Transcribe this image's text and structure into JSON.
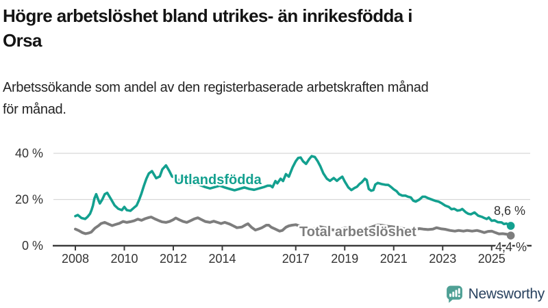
{
  "title": {
    "line1": "Högre arbetslöshet bland utrikes- än inrikesfödda i",
    "line2": "Orsa"
  },
  "subtitle": {
    "line1": "Arbetssökande som andel av den registerbaserade arbetskraften månad",
    "line2": "för månad."
  },
  "chart_data": {
    "type": "line",
    "unit": "%",
    "grid": "horizontal",
    "legend_position": "inline-labels",
    "ylim": [
      0,
      40
    ],
    "xlim": [
      2008,
      2025.9
    ],
    "y_ticks": [
      {
        "value": 0,
        "label": "0 %"
      },
      {
        "value": 20,
        "label": "20 %"
      },
      {
        "value": 40,
        "label": "40 %"
      }
    ],
    "x_ticks": [
      {
        "value": 2008,
        "label": "2008"
      },
      {
        "value": 2010,
        "label": "2010"
      },
      {
        "value": 2012,
        "label": "2012"
      },
      {
        "value": 2014,
        "label": "2014"
      },
      {
        "value": 2017,
        "label": "2017"
      },
      {
        "value": 2019,
        "label": "2019"
      },
      {
        "value": 2021,
        "label": "2021"
      },
      {
        "value": 2023,
        "label": "2023"
      },
      {
        "value": 2025,
        "label": "2025"
      }
    ],
    "series": [
      {
        "name": "Utlandsfödda",
        "color": "#13a08f",
        "end_label": "8,6 %",
        "end_value": 8.6,
        "points": [
          [
            2008.0,
            12.8
          ],
          [
            2008.1,
            13.3
          ],
          [
            2008.25,
            12.0
          ],
          [
            2008.4,
            11.6
          ],
          [
            2008.5,
            12.5
          ],
          [
            2008.6,
            13.8
          ],
          [
            2008.66,
            15.4
          ],
          [
            2008.72,
            17.4
          ],
          [
            2008.78,
            20.5
          ],
          [
            2008.85,
            22.3
          ],
          [
            2008.95,
            19.5
          ],
          [
            2009.0,
            18.3
          ],
          [
            2009.1,
            20.0
          ],
          [
            2009.2,
            22.3
          ],
          [
            2009.3,
            22.9
          ],
          [
            2009.45,
            20.3
          ],
          [
            2009.6,
            17.5
          ],
          [
            2009.75,
            16.0
          ],
          [
            2009.9,
            15.4
          ],
          [
            2010.0,
            16.8
          ],
          [
            2010.1,
            15.4
          ],
          [
            2010.25,
            15.1
          ],
          [
            2010.4,
            16.5
          ],
          [
            2010.5,
            17.4
          ],
          [
            2010.6,
            19.7
          ],
          [
            2010.7,
            22.6
          ],
          [
            2010.8,
            26.0
          ],
          [
            2010.9,
            29.0
          ],
          [
            2011.0,
            31.3
          ],
          [
            2011.13,
            32.3
          ],
          [
            2011.3,
            29.2
          ],
          [
            2011.45,
            30.0
          ],
          [
            2011.55,
            33.0
          ],
          [
            2011.7,
            34.8
          ],
          [
            2011.83,
            32.5
          ],
          [
            2011.95,
            30.0
          ],
          [
            2012.1,
            29.3
          ],
          [
            2012.3,
            28.0
          ],
          [
            2012.5,
            27.0
          ],
          [
            2012.7,
            26.3
          ],
          [
            2012.9,
            27.0
          ],
          [
            2013.1,
            26.2
          ],
          [
            2013.3,
            25.4
          ],
          [
            2013.5,
            24.8
          ],
          [
            2013.7,
            25.4
          ],
          [
            2013.9,
            26.0
          ],
          [
            2014.1,
            25.2
          ],
          [
            2014.3,
            24.6
          ],
          [
            2014.5,
            24.0
          ],
          [
            2014.7,
            24.6
          ],
          [
            2014.9,
            25.2
          ],
          [
            2015.1,
            24.6
          ],
          [
            2015.3,
            24.2
          ],
          [
            2015.5,
            24.8
          ],
          [
            2015.7,
            25.4
          ],
          [
            2015.85,
            26.0
          ],
          [
            2015.97,
            26.0
          ],
          [
            2016.05,
            25.3
          ],
          [
            2016.17,
            28.0
          ],
          [
            2016.25,
            27.0
          ],
          [
            2016.38,
            29.0
          ],
          [
            2016.48,
            28.0
          ],
          [
            2016.6,
            31.0
          ],
          [
            2016.72,
            29.9
          ],
          [
            2016.87,
            33.9
          ],
          [
            2017.0,
            36.6
          ],
          [
            2017.1,
            38.0
          ],
          [
            2017.2,
            38.2
          ],
          [
            2017.3,
            36.5
          ],
          [
            2017.42,
            35.4
          ],
          [
            2017.55,
            37.5
          ],
          [
            2017.65,
            38.8
          ],
          [
            2017.78,
            38.4
          ],
          [
            2017.9,
            36.5
          ],
          [
            2018.0,
            34.5
          ],
          [
            2018.13,
            31.3
          ],
          [
            2018.27,
            29.0
          ],
          [
            2018.4,
            28.1
          ],
          [
            2018.55,
            29.3
          ],
          [
            2018.68,
            28.1
          ],
          [
            2018.78,
            29.0
          ],
          [
            2018.9,
            29.9
          ],
          [
            2019.0,
            27.8
          ],
          [
            2019.15,
            25.2
          ],
          [
            2019.27,
            24.1
          ],
          [
            2019.4,
            25.0
          ],
          [
            2019.5,
            25.5
          ],
          [
            2019.6,
            26.7
          ],
          [
            2019.7,
            27.5
          ],
          [
            2019.82,
            29.0
          ],
          [
            2019.9,
            28.4
          ],
          [
            2019.98,
            24.6
          ],
          [
            2020.08,
            23.8
          ],
          [
            2020.17,
            24.1
          ],
          [
            2020.25,
            26.5
          ],
          [
            2020.35,
            27.2
          ],
          [
            2020.5,
            26.7
          ],
          [
            2020.65,
            26.4
          ],
          [
            2020.78,
            26.3
          ],
          [
            2020.88,
            25.5
          ],
          [
            2021.0,
            24.4
          ],
          [
            2021.12,
            23.6
          ],
          [
            2021.22,
            22.3
          ],
          [
            2021.35,
            21.7
          ],
          [
            2021.48,
            21.7
          ],
          [
            2021.58,
            21.2
          ],
          [
            2021.7,
            20.9
          ],
          [
            2021.8,
            19.5
          ],
          [
            2021.9,
            19.1
          ],
          [
            2022.05,
            20.0
          ],
          [
            2022.18,
            21.2
          ],
          [
            2022.28,
            21.2
          ],
          [
            2022.4,
            20.6
          ],
          [
            2022.55,
            20.0
          ],
          [
            2022.7,
            19.4
          ],
          [
            2022.83,
            19.1
          ],
          [
            2022.97,
            18.3
          ],
          [
            2023.1,
            17.4
          ],
          [
            2023.25,
            16.8
          ],
          [
            2023.36,
            15.8
          ],
          [
            2023.47,
            16.0
          ],
          [
            2023.6,
            15.2
          ],
          [
            2023.72,
            15.4
          ],
          [
            2023.8,
            15.9
          ],
          [
            2023.94,
            14.5
          ],
          [
            2024.05,
            13.8
          ],
          [
            2024.15,
            13.6
          ],
          [
            2024.3,
            14.4
          ],
          [
            2024.45,
            13.0
          ],
          [
            2024.6,
            12.5
          ],
          [
            2024.7,
            12.0
          ],
          [
            2024.8,
            11.6
          ],
          [
            2024.88,
            12.2
          ],
          [
            2025.0,
            10.8
          ],
          [
            2025.12,
            11.0
          ],
          [
            2025.25,
            10.2
          ],
          [
            2025.4,
            10.1
          ],
          [
            2025.5,
            9.4
          ],
          [
            2025.6,
            9.6
          ],
          [
            2025.7,
            9.0
          ],
          [
            2025.78,
            8.6
          ]
        ]
      },
      {
        "name": "Total arbetslöshet",
        "color": "#7d7d7d",
        "end_label": "4,4 %",
        "end_value": 4.4,
        "points": [
          [
            2008.0,
            7.2
          ],
          [
            2008.15,
            6.5
          ],
          [
            2008.3,
            5.6
          ],
          [
            2008.42,
            5.2
          ],
          [
            2008.55,
            5.5
          ],
          [
            2008.65,
            5.9
          ],
          [
            2008.8,
            7.6
          ],
          [
            2008.95,
            8.7
          ],
          [
            2009.05,
            9.6
          ],
          [
            2009.2,
            10.1
          ],
          [
            2009.35,
            9.4
          ],
          [
            2009.5,
            8.7
          ],
          [
            2009.65,
            9.2
          ],
          [
            2009.8,
            9.7
          ],
          [
            2009.95,
            10.5
          ],
          [
            2010.1,
            10.1
          ],
          [
            2010.25,
            10.4
          ],
          [
            2010.4,
            10.8
          ],
          [
            2010.55,
            11.5
          ],
          [
            2010.7,
            11.0
          ],
          [
            2010.85,
            11.7
          ],
          [
            2011.0,
            12.2
          ],
          [
            2011.1,
            12.4
          ],
          [
            2011.25,
            11.6
          ],
          [
            2011.4,
            10.9
          ],
          [
            2011.55,
            10.3
          ],
          [
            2011.7,
            10.1
          ],
          [
            2011.85,
            10.5
          ],
          [
            2012.0,
            11.3
          ],
          [
            2012.1,
            12.0
          ],
          [
            2012.25,
            11.2
          ],
          [
            2012.4,
            10.5
          ],
          [
            2012.55,
            10.1
          ],
          [
            2012.7,
            10.8
          ],
          [
            2012.85,
            11.6
          ],
          [
            2013.0,
            12.1
          ],
          [
            2013.15,
            11.3
          ],
          [
            2013.3,
            10.5
          ],
          [
            2013.5,
            10.1
          ],
          [
            2013.65,
            10.6
          ],
          [
            2013.8,
            10.1
          ],
          [
            2013.95,
            9.6
          ],
          [
            2014.1,
            10.1
          ],
          [
            2014.3,
            9.4
          ],
          [
            2014.45,
            8.6
          ],
          [
            2014.6,
            7.8
          ],
          [
            2014.8,
            8.1
          ],
          [
            2014.95,
            9.0
          ],
          [
            2015.05,
            9.5
          ],
          [
            2015.2,
            7.9
          ],
          [
            2015.35,
            6.8
          ],
          [
            2015.5,
            7.3
          ],
          [
            2015.62,
            7.8
          ],
          [
            2015.8,
            8.9
          ],
          [
            2015.9,
            8.9
          ],
          [
            2016.0,
            8.0
          ],
          [
            2016.15,
            7.3
          ],
          [
            2016.34,
            6.3
          ],
          [
            2016.45,
            6.6
          ],
          [
            2016.6,
            8.0
          ],
          [
            2016.72,
            8.6
          ],
          [
            2016.85,
            8.9
          ],
          [
            2017.0,
            9.1
          ],
          [
            2017.2,
            8.4
          ],
          [
            2017.4,
            7.6
          ],
          [
            2017.6,
            7.0
          ],
          [
            2017.85,
            7.7
          ],
          [
            2018.0,
            8.2
          ],
          [
            2018.2,
            7.8
          ],
          [
            2018.45,
            7.0
          ],
          [
            2018.65,
            6.6
          ],
          [
            2018.85,
            7.2
          ],
          [
            2019.0,
            7.8
          ],
          [
            2019.2,
            7.4
          ],
          [
            2019.4,
            6.8
          ],
          [
            2019.6,
            6.6
          ],
          [
            2019.8,
            7.0
          ],
          [
            2019.97,
            7.6
          ],
          [
            2020.15,
            8.3
          ],
          [
            2020.35,
            9.0
          ],
          [
            2020.55,
            8.8
          ],
          [
            2020.75,
            8.4
          ],
          [
            2020.95,
            8.2
          ],
          [
            2021.1,
            8.0
          ],
          [
            2021.3,
            7.6
          ],
          [
            2021.5,
            7.2
          ],
          [
            2021.65,
            6.9
          ],
          [
            2021.85,
            7.0
          ],
          [
            2022.05,
            7.4
          ],
          [
            2022.2,
            7.2
          ],
          [
            2022.4,
            7.0
          ],
          [
            2022.6,
            7.2
          ],
          [
            2022.75,
            7.8
          ],
          [
            2022.95,
            7.3
          ],
          [
            2023.1,
            7.1
          ],
          [
            2023.3,
            6.6
          ],
          [
            2023.5,
            6.3
          ],
          [
            2023.65,
            6.6
          ],
          [
            2023.85,
            6.3
          ],
          [
            2024.0,
            6.6
          ],
          [
            2024.2,
            6.3
          ],
          [
            2024.4,
            6.6
          ],
          [
            2024.55,
            6.2
          ],
          [
            2024.7,
            5.7
          ],
          [
            2024.85,
            6.2
          ],
          [
            2025.0,
            6.3
          ],
          [
            2025.15,
            5.7
          ],
          [
            2025.3,
            5.1
          ],
          [
            2025.45,
            5.2
          ],
          [
            2025.6,
            5.0
          ],
          [
            2025.7,
            4.7
          ],
          [
            2025.78,
            4.4
          ]
        ]
      }
    ]
  },
  "logo": {
    "text": "Newsworthy",
    "icon": "newsworthy-bubble-chart-icon",
    "icon_color": "#4fa095",
    "text_color": "#29425f"
  }
}
